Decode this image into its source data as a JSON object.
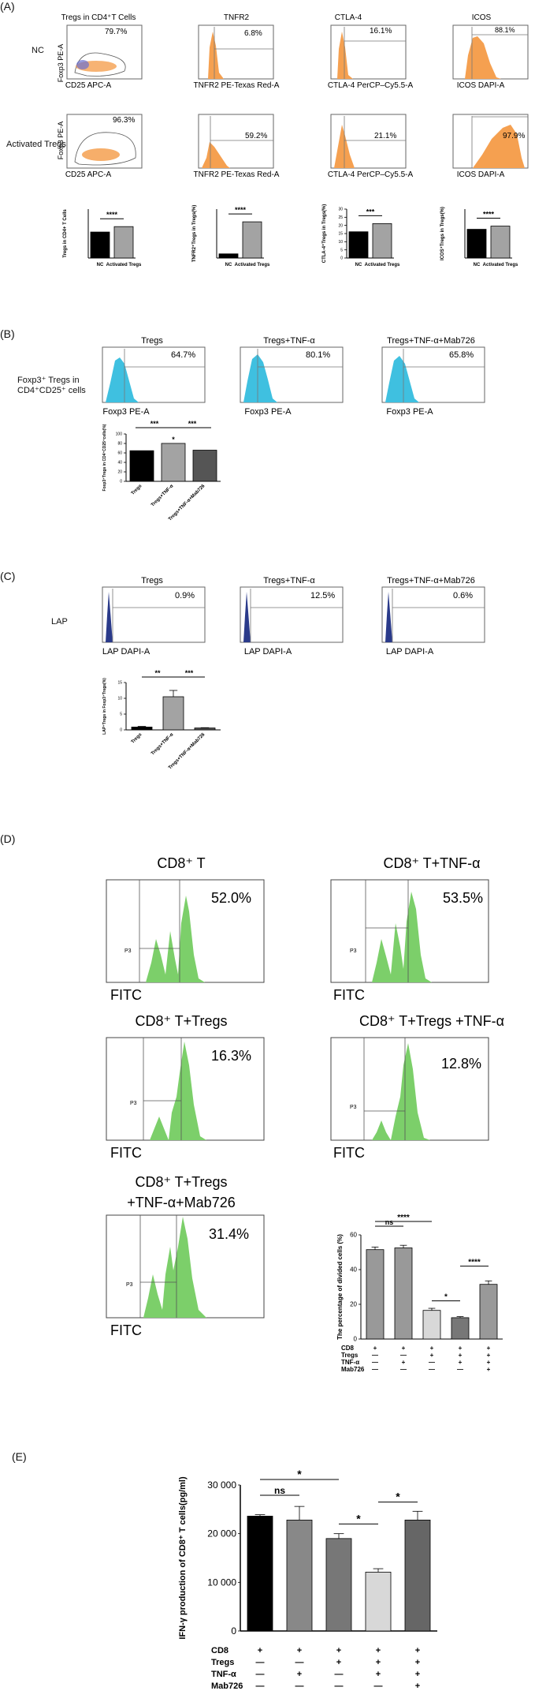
{
  "panels": {
    "A": "(A)",
    "B": "(B)",
    "C": "(C)",
    "D": "(D)",
    "E": "(E)"
  },
  "panelA": {
    "row_labels": [
      "NC",
      "Activated Tregs"
    ],
    "col_titles": [
      "Tregs in CD4⁺T Cells",
      "TNFR2",
      "CTLA-4",
      "ICOS"
    ],
    "xaxes": [
      "CD25 APC-A",
      "TNFR2 PE-Texas Red-A",
      "CTLA-4 PerCP–Cy5.5-A",
      "ICOS DAPI-A"
    ],
    "yaxis_dot": "Foxp3 PE-A",
    "nc_percents": [
      "79.7%",
      "6.8%",
      "16.1%",
      "88.1%"
    ],
    "act_percents": [
      "96.3%",
      "59.2%",
      "21.1%",
      "97.9%"
    ],
    "sig": [
      "****",
      "****",
      "***",
      "****"
    ],
    "bar_ylabels": [
      "Tregs in CD4+ T Cells",
      "TNFR2⁺Tregs in Tregs(%)",
      "CTLA-4⁺Tregs in Tregs(%)",
      "ICOS⁺Tregs in Tregs(%)"
    ],
    "bar_categories": [
      "NC",
      "Activated Tregs"
    ]
  },
  "panelB": {
    "side_label_1": "Foxp3⁺ Tregs in",
    "side_label_2": "CD4⁺CD25⁺ cells",
    "titles": [
      "Tregs",
      "Tregs+TNF-α",
      "Tregs+TNF-α+Mab726"
    ],
    "xaxis": "Foxp3 PE-A",
    "percents": [
      "64.7%",
      "80.1%",
      "65.8%"
    ],
    "bar_ylabel": "Foxp3⁺Tregs in CD4⁺CD25⁺cells(%)",
    "sig": [
      "***",
      "*",
      "***"
    ],
    "categories": [
      "Tregs",
      "Tregs+TNF-α",
      "Tregs+TNF-α+Mab726"
    ]
  },
  "panelC": {
    "side_label": "LAP",
    "titles": [
      "Tregs",
      "Tregs+TNF-α",
      "Tregs+TNF-α+Mab726"
    ],
    "xaxis": "LAP DAPI-A",
    "percents": [
      "0.9%",
      "12.5%",
      "0.6%"
    ],
    "bar_ylabel": "LAP⁺Tregs in Foxp3⁺Tregs(%)",
    "sig": [
      "**",
      "***"
    ],
    "categories": [
      "Tregs",
      "Tregs+TNF-α",
      "Tregs+TNF-α+Mab726"
    ]
  },
  "panelD": {
    "titles": [
      "CD8⁺ T",
      "CD8⁺ T+TNF-α",
      "CD8⁺ T+Tregs",
      "CD8⁺ T+Tregs +TNF-α",
      "CD8⁺ T+Tregs",
      "+TNF-α+Mab726"
    ],
    "percents": [
      "52.0%",
      "53.5%",
      "16.3%",
      "12.8%",
      "31.4%"
    ],
    "xaxis": "FITC",
    "gate": "P3",
    "bar_ylabel": "The percentage of divided cells (%)",
    "row_names": [
      "CD8",
      "Tregs",
      "TNF-α",
      "Mab726"
    ],
    "sig": [
      "****",
      "ns",
      "*",
      "****"
    ]
  },
  "panelE": {
    "ylabel": "IFN-γ production of CD8⁺ T cells(pg/ml)",
    "row_names": [
      "CD8",
      "Tregs",
      "TNF-α",
      "Mab726"
    ],
    "sig": [
      "*",
      "ns",
      "*",
      "*"
    ],
    "yticks": [
      "0",
      "10 000",
      "20 000",
      "30 000"
    ]
  },
  "chart_data": [
    {
      "type": "bar",
      "categories": [
        "NC",
        "Activated Tregs"
      ],
      "values": [
        79.7,
        96.3
      ],
      "ylim": [
        0,
        150
      ]
    },
    {
      "type": "bar",
      "categories": [
        "NC",
        "Activated Tregs"
      ],
      "values": [
        6.8,
        59.2
      ],
      "ylim": [
        0,
        80
      ]
    },
    {
      "type": "bar",
      "categories": [
        "NC",
        "Activated Tregs"
      ],
      "values": [
        16.1,
        21.1
      ],
      "ylim": [
        0,
        30
      ],
      "yticks": [
        0,
        5,
        10,
        15,
        20,
        25,
        30
      ]
    },
    {
      "type": "bar",
      "categories": [
        "NC",
        "Activated Tregs"
      ],
      "values": [
        88.1,
        97.9
      ],
      "ylim": [
        0,
        150
      ]
    },
    {
      "type": "bar",
      "categories": [
        "Tregs",
        "Tregs+TNF-α",
        "Tregs+TNF-α+Mab726"
      ],
      "values": [
        64.7,
        80.1,
        65.8
      ],
      "ylim": [
        0,
        100
      ],
      "yticks": [
        0,
        20,
        40,
        60,
        80,
        100
      ]
    },
    {
      "type": "bar",
      "categories": [
        "Tregs",
        "Tregs+TNF-α",
        "Tregs+TNF-α+Mab726"
      ],
      "values": [
        0.9,
        10.5,
        0.6
      ],
      "ylim": [
        0,
        15
      ],
      "yticks": [
        0,
        5,
        10,
        15
      ]
    },
    {
      "type": "bar",
      "values": [
        51.5,
        52.5,
        16.5,
        12.3,
        31.5
      ],
      "ylim": [
        0,
        60
      ],
      "yticks": [
        0,
        20,
        40,
        60
      ],
      "ylabel": "The percentage of divided cells (%)",
      "conditions": [
        [
          "+",
          "+",
          "+",
          "+",
          "+"
        ],
        [
          "—",
          "—",
          "+",
          "+",
          "+"
        ],
        [
          "—",
          "+",
          "—",
          "+",
          "+"
        ],
        [
          "—",
          "—",
          "—",
          "—",
          "+"
        ]
      ]
    },
    {
      "type": "bar",
      "values": [
        23600,
        22800,
        19000,
        12100,
        22800
      ],
      "ylim": [
        0,
        30000
      ],
      "yticks": [
        0,
        10000,
        20000,
        30000
      ],
      "ylabel": "IFN-γ production of CD8⁺ T cells(pg/ml)",
      "conditions": [
        [
          "+",
          "+",
          "+",
          "+",
          "+"
        ],
        [
          "—",
          "—",
          "+",
          "+",
          "+"
        ],
        [
          "—",
          "+",
          "—",
          "+",
          "+"
        ],
        [
          "—",
          "—",
          "—",
          "—",
          "+"
        ]
      ]
    }
  ],
  "colors": {
    "orange": "#f5a050",
    "cyan": "#3fc0e0",
    "navy": "#2a3a8a",
    "green": "#7ccf6a"
  }
}
